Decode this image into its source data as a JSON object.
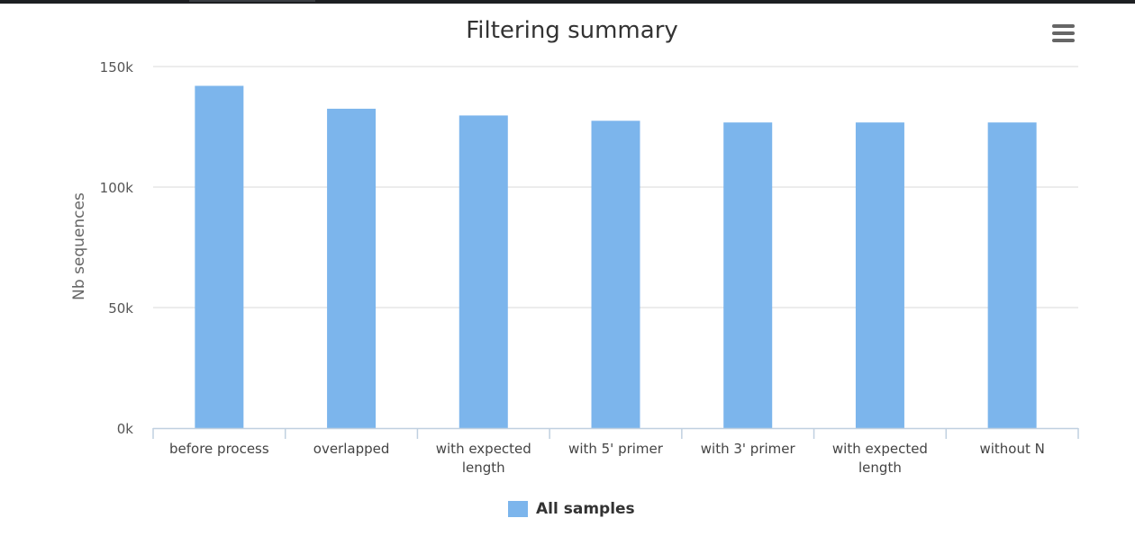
{
  "chart_data": {
    "type": "bar",
    "title": "Filtering summary",
    "ylabel": "Nb sequences",
    "xlabel": "",
    "categories": [
      [
        "before process"
      ],
      [
        "overlapped"
      ],
      [
        "with expected",
        "length"
      ],
      [
        "with 5' primer"
      ],
      [
        "with 3' primer"
      ],
      [
        "with expected",
        "length"
      ],
      [
        "without N"
      ]
    ],
    "series": [
      {
        "name": "All samples",
        "color": "#7cb5ec",
        "values": [
          142000,
          132500,
          129700,
          127500,
          126800,
          126800,
          126800
        ]
      }
    ],
    "ylim": [
      0,
      150000
    ],
    "yticks": [
      0,
      50000,
      100000,
      150000
    ],
    "ytick_labels": [
      "0k",
      "50k",
      "100k",
      "150k"
    ],
    "grid": true,
    "legend_position": "bottom-center"
  },
  "toolbar": {
    "menu_icon": "hamburger-menu-icon"
  }
}
